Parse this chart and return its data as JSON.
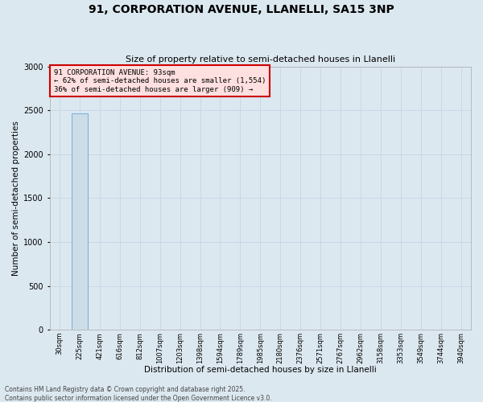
{
  "title1": "91, CORPORATION AVENUE, LLANELLI, SA15 3NP",
  "title2": "Size of property relative to semi-detached houses in Llanelli",
  "xlabel": "Distribution of semi-detached houses by size in Llanelli",
  "ylabel": "Number of semi-detached properties",
  "annotation_title": "91 CORPORATION AVENUE: 93sqm",
  "annotation_line2": "← 62% of semi-detached houses are smaller (1,554)",
  "annotation_line3": "36% of semi-detached houses are larger (909) →",
  "footer1": "Contains HM Land Registry data © Crown copyright and database right 2025.",
  "footer2": "Contains public sector information licensed under the Open Government Licence v3.0.",
  "categories": [
    "30sqm",
    "225sqm",
    "421sqm",
    "616sqm",
    "812sqm",
    "1007sqm",
    "1203sqm",
    "1398sqm",
    "1594sqm",
    "1789sqm",
    "1985sqm",
    "2180sqm",
    "2376sqm",
    "2571sqm",
    "2767sqm",
    "2962sqm",
    "3158sqm",
    "3353sqm",
    "3549sqm",
    "3744sqm",
    "3940sqm"
  ],
  "values": [
    2,
    2463,
    2,
    1,
    1,
    1,
    1,
    1,
    1,
    1,
    1,
    1,
    1,
    1,
    1,
    1,
    1,
    1,
    1,
    1,
    1
  ],
  "bar_color": "#ccdde8",
  "bar_edge_color": "#5599cc",
  "ylim": [
    0,
    3000
  ],
  "yticks": [
    0,
    500,
    1000,
    1500,
    2000,
    2500,
    3000
  ],
  "grid_color": "#c8d8e8",
  "bg_color": "#dce8f0",
  "annotation_box_facecolor": "#ffe0e0",
  "annotation_box_edgecolor": "#cc0000",
  "title1_fontsize": 10,
  "title2_fontsize": 8,
  "ylabel_fontsize": 7.5,
  "xlabel_fontsize": 7.5,
  "tick_fontsize": 7,
  "xtick_fontsize": 6,
  "footer_fontsize": 5.5,
  "annotation_fontsize": 6.5
}
